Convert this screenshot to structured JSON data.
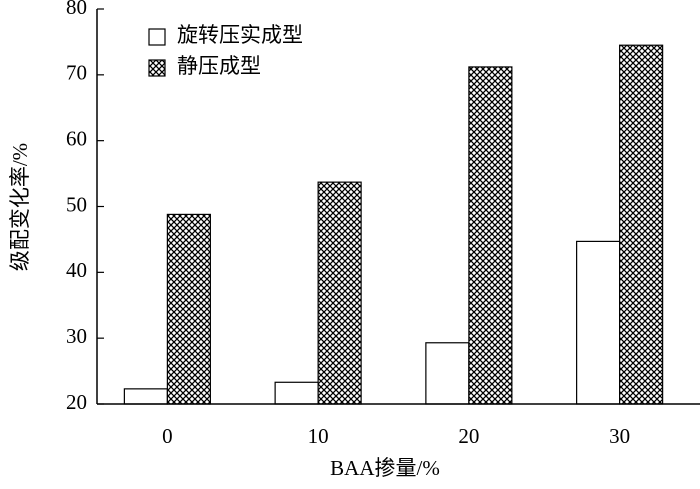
{
  "chart_data": {
    "type": "bar",
    "x_label": "BAA掺量/%",
    "y_label": "级配变化率/%",
    "categories": [
      "0",
      "10",
      "20",
      "30"
    ],
    "series": [
      {
        "name": "旋转压实成型",
        "color": "#ffffff",
        "values": [
          22.3,
          23.3,
          29.3,
          44.7
        ]
      },
      {
        "name": "静压成型",
        "color": "#000000",
        "pattern": "crosshatch",
        "values": [
          48.8,
          53.7,
          71.2,
          74.5
        ]
      }
    ],
    "ylim": [
      20,
      80
    ],
    "yticks": [
      20,
      30,
      40,
      50,
      60,
      70,
      80
    ],
    "grid": false,
    "legend": "upper left"
  }
}
